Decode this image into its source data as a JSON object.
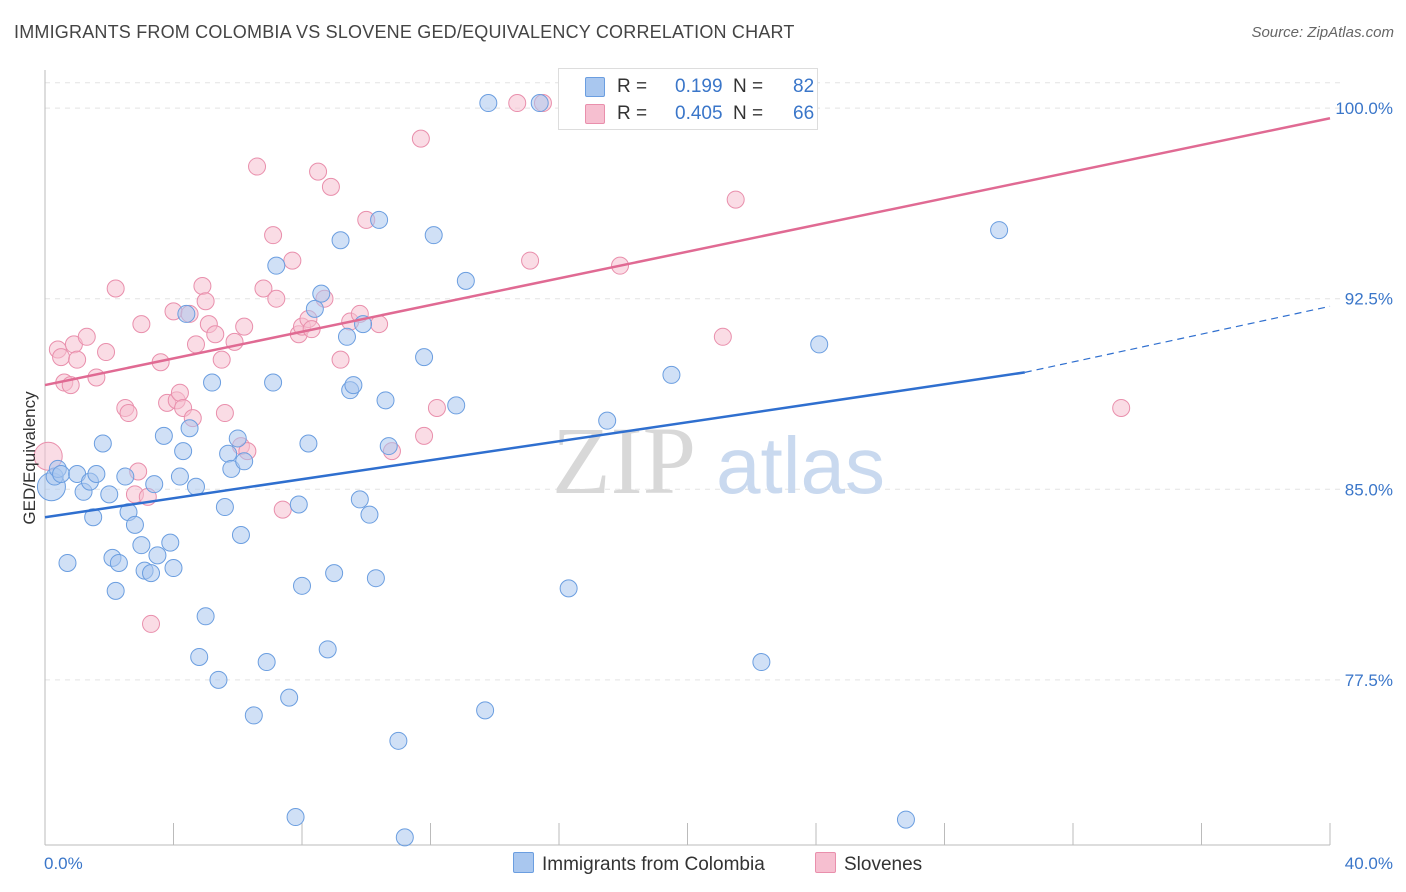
{
  "title": "IMMIGRANTS FROM COLOMBIA VS SLOVENE GED/EQUIVALENCY CORRELATION CHART",
  "source": "Source: ZipAtlas.com",
  "watermark": {
    "zip": "ZIP",
    "atlas": "atlas"
  },
  "legend": {
    "rows": [
      {
        "r_label": "R =",
        "r_value": "0.199",
        "n_label": "N =",
        "n_value": "82"
      },
      {
        "r_label": "R =",
        "r_value": "0.405",
        "n_label": "N =",
        "n_value": "66"
      }
    ]
  },
  "bottom_legend": [
    "Immigrants from Colombia",
    "Slovenes"
  ],
  "colors": {
    "blue_fill": "#a9c7ef",
    "blue_stroke": "#6b9ee0",
    "blue_line": "#2f6fcf",
    "pink_fill": "#f6bfd0",
    "pink_stroke": "#e98fac",
    "pink_line": "#e06a93",
    "axis_label": "#3a76c9",
    "grid": "#e4e4e4"
  },
  "chart_data": {
    "type": "scatter",
    "title": "IMMIGRANTS FROM COLOMBIA VS SLOVENE GED/EQUIVALENCY CORRELATION CHART",
    "xlabel": "",
    "ylabel": "GED/Equivalency",
    "xlim": [
      0,
      40
    ],
    "ylim": [
      71.0,
      101.5
    ],
    "x_tick_labels": [
      "0.0%",
      "40.0%"
    ],
    "y_ticks": [
      77.5,
      85.0,
      92.5,
      100.0
    ],
    "y_tick_labels": [
      "77.5%",
      "85.0%",
      "92.5%",
      "100.0%"
    ],
    "grid": true,
    "legend_placement": "top-center",
    "series": [
      {
        "name": "Immigrants from Colombia",
        "color": "#a9c7ef",
        "trend": {
          "x": [
            0,
            30.5
          ],
          "y": [
            83.9,
            89.6
          ],
          "dashed_to": [
            40,
            92.2
          ]
        },
        "points": [
          [
            0.2,
            85.1
          ],
          [
            0.3,
            85.5
          ],
          [
            0.4,
            85.8
          ],
          [
            0.5,
            85.6
          ],
          [
            0.7,
            82.1
          ],
          [
            1.0,
            85.6
          ],
          [
            1.2,
            84.9
          ],
          [
            1.4,
            85.3
          ],
          [
            1.5,
            83.9
          ],
          [
            1.6,
            85.6
          ],
          [
            1.8,
            86.8
          ],
          [
            2.1,
            82.3
          ],
          [
            2.2,
            81.0
          ],
          [
            2.3,
            82.1
          ],
          [
            2.5,
            85.5
          ],
          [
            2.6,
            84.1
          ],
          [
            2.8,
            83.6
          ],
          [
            3.0,
            82.8
          ],
          [
            3.1,
            81.8
          ],
          [
            3.4,
            85.2
          ],
          [
            3.5,
            82.4
          ],
          [
            3.7,
            87.1
          ],
          [
            3.9,
            82.9
          ],
          [
            4.0,
            81.9
          ],
          [
            4.2,
            85.5
          ],
          [
            4.3,
            86.5
          ],
          [
            4.4,
            91.9
          ],
          [
            4.5,
            87.4
          ],
          [
            4.7,
            85.1
          ],
          [
            4.8,
            78.4
          ],
          [
            5.0,
            80.0
          ],
          [
            5.2,
            89.2
          ],
          [
            5.4,
            77.5
          ],
          [
            5.6,
            84.3
          ],
          [
            5.7,
            86.4
          ],
          [
            5.8,
            85.8
          ],
          [
            6.0,
            87.0
          ],
          [
            6.2,
            86.1
          ],
          [
            6.5,
            76.1
          ],
          [
            6.9,
            78.2
          ],
          [
            7.2,
            93.8
          ],
          [
            7.1,
            89.2
          ],
          [
            7.6,
            76.8
          ],
          [
            7.8,
            72.1
          ],
          [
            7.9,
            84.4
          ],
          [
            8.0,
            81.2
          ],
          [
            8.2,
            86.8
          ],
          [
            8.4,
            92.1
          ],
          [
            8.6,
            92.7
          ],
          [
            8.8,
            78.7
          ],
          [
            9.0,
            81.7
          ],
          [
            9.2,
            94.8
          ],
          [
            9.4,
            91.0
          ],
          [
            9.5,
            88.9
          ],
          [
            9.6,
            89.1
          ],
          [
            9.8,
            84.6
          ],
          [
            10.1,
            84.0
          ],
          [
            10.3,
            81.5
          ],
          [
            10.4,
            95.6
          ],
          [
            10.6,
            88.5
          ],
          [
            10.7,
            86.7
          ],
          [
            11.0,
            75.1
          ],
          [
            11.2,
            71.3
          ],
          [
            12.1,
            95.0
          ],
          [
            12.8,
            88.3
          ],
          [
            13.1,
            93.2
          ],
          [
            13.7,
            76.3
          ],
          [
            13.8,
            100.2
          ],
          [
            15.4,
            100.2
          ],
          [
            16.3,
            81.1
          ],
          [
            17.5,
            87.7
          ],
          [
            19.5,
            89.5
          ],
          [
            20.8,
            100.2
          ],
          [
            22.3,
            78.2
          ],
          [
            24.1,
            90.7
          ],
          [
            26.8,
            72.0
          ],
          [
            29.7,
            95.2
          ],
          [
            3.3,
            81.7
          ],
          [
            2.0,
            84.8
          ],
          [
            6.1,
            83.2
          ],
          [
            9.9,
            91.5
          ],
          [
            11.8,
            90.2
          ]
        ]
      },
      {
        "name": "Slovenes",
        "color": "#f6bfd0",
        "trend": {
          "x": [
            0,
            40
          ],
          "y": [
            89.1,
            99.6
          ]
        },
        "points": [
          [
            0.1,
            86.3
          ],
          [
            0.4,
            90.5
          ],
          [
            0.5,
            90.2
          ],
          [
            0.6,
            89.2
          ],
          [
            0.8,
            89.1
          ],
          [
            0.9,
            90.7
          ],
          [
            1.0,
            90.1
          ],
          [
            1.3,
            91.0
          ],
          [
            1.6,
            89.4
          ],
          [
            1.9,
            90.4
          ],
          [
            2.2,
            92.9
          ],
          [
            2.5,
            88.2
          ],
          [
            2.6,
            88.0
          ],
          [
            2.9,
            85.7
          ],
          [
            2.8,
            84.8
          ],
          [
            3.0,
            91.5
          ],
          [
            3.2,
            84.7
          ],
          [
            3.3,
            79.7
          ],
          [
            3.6,
            90.0
          ],
          [
            3.8,
            88.4
          ],
          [
            4.0,
            92.0
          ],
          [
            4.1,
            88.5
          ],
          [
            4.2,
            88.8
          ],
          [
            4.3,
            88.2
          ],
          [
            4.5,
            91.9
          ],
          [
            4.7,
            90.7
          ],
          [
            4.9,
            93.0
          ],
          [
            5.0,
            92.4
          ],
          [
            5.1,
            91.5
          ],
          [
            5.3,
            91.1
          ],
          [
            5.5,
            90.1
          ],
          [
            5.6,
            88.0
          ],
          [
            5.9,
            90.8
          ],
          [
            6.1,
            86.7
          ],
          [
            6.2,
            91.4
          ],
          [
            6.6,
            97.7
          ],
          [
            6.8,
            92.9
          ],
          [
            7.1,
            95.0
          ],
          [
            7.2,
            92.5
          ],
          [
            7.4,
            84.2
          ],
          [
            7.7,
            94.0
          ],
          [
            7.9,
            91.1
          ],
          [
            8.0,
            91.4
          ],
          [
            8.2,
            91.7
          ],
          [
            8.5,
            97.5
          ],
          [
            8.7,
            92.5
          ],
          [
            8.9,
            96.9
          ],
          [
            9.2,
            90.1
          ],
          [
            9.5,
            91.6
          ],
          [
            9.8,
            91.9
          ],
          [
            10.0,
            95.6
          ],
          [
            10.4,
            91.5
          ],
          [
            10.8,
            86.5
          ],
          [
            11.7,
            98.8
          ],
          [
            11.8,
            87.1
          ],
          [
            12.2,
            88.2
          ],
          [
            14.7,
            100.2
          ],
          [
            15.1,
            94.0
          ],
          [
            17.9,
            93.8
          ],
          [
            21.1,
            91.0
          ],
          [
            21.5,
            96.4
          ],
          [
            33.5,
            88.2
          ],
          [
            15.5,
            100.2
          ],
          [
            6.3,
            86.5
          ],
          [
            4.6,
            87.8
          ],
          [
            8.3,
            91.3
          ]
        ]
      }
    ]
  }
}
